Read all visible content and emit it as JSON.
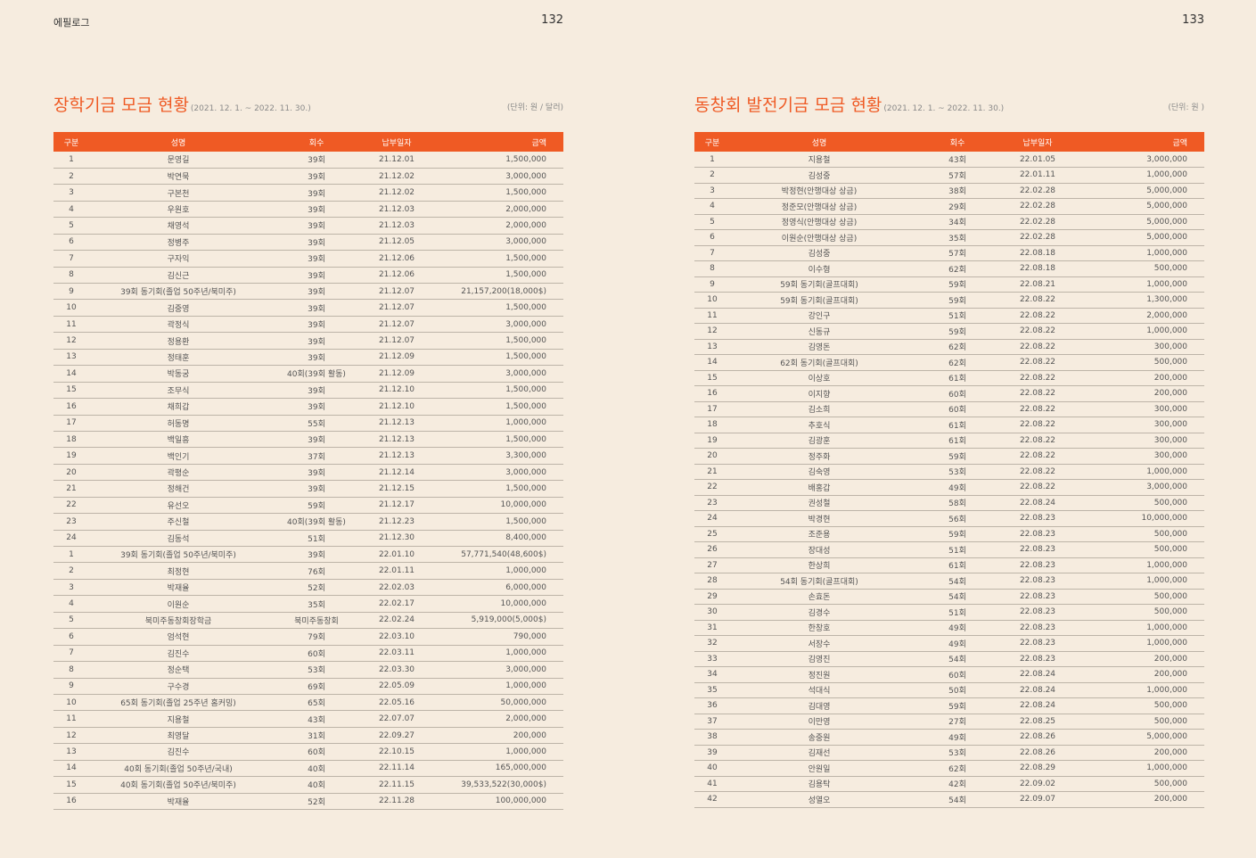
{
  "left": {
    "section_label": "에필로그",
    "page_number": "132",
    "title": "장학기금 모금 현황",
    "period": "(2021. 12. 1. ~ 2022. 11. 30.)",
    "unit": "(단위: 원 / 달러)",
    "headers": [
      "구분",
      "성명",
      "회수",
      "납부일자",
      "금액"
    ],
    "rows": [
      [
        "1",
        "문영길",
        "39회",
        "21.12.01",
        "1,500,000"
      ],
      [
        "2",
        "박연묵",
        "39회",
        "21.12.02",
        "3,000,000"
      ],
      [
        "3",
        "구본천",
        "39회",
        "21.12.02",
        "1,500,000"
      ],
      [
        "4",
        "우원호",
        "39회",
        "21.12.03",
        "2,000,000"
      ],
      [
        "5",
        "채영석",
        "39회",
        "21.12.03",
        "2,000,000"
      ],
      [
        "6",
        "정병주",
        "39회",
        "21.12.05",
        "3,000,000"
      ],
      [
        "7",
        "구자익",
        "39회",
        "21.12.06",
        "1,500,000"
      ],
      [
        "8",
        "김신근",
        "39회",
        "21.12.06",
        "1,500,000"
      ],
      [
        "9",
        "39회 동기회(졸업 50주년/북미주)",
        "39회",
        "21.12.07",
        "21,157,200(18,000$)"
      ],
      [
        "10",
        "김중영",
        "39회",
        "21.12.07",
        "1,500,000"
      ],
      [
        "11",
        "곽정식",
        "39회",
        "21.12.07",
        "3,000,000"
      ],
      [
        "12",
        "정용환",
        "39회",
        "21.12.07",
        "1,500,000"
      ],
      [
        "13",
        "정태훈",
        "39회",
        "21.12.09",
        "1,500,000"
      ],
      [
        "14",
        "박동궁",
        "40회(39회 활동)",
        "21.12.09",
        "3,000,000"
      ],
      [
        "15",
        "조무식",
        "39회",
        "21.12.10",
        "1,500,000"
      ],
      [
        "16",
        "채희갑",
        "39회",
        "21.12.10",
        "1,500,000"
      ],
      [
        "17",
        "허동명",
        "55회",
        "21.12.13",
        "1,000,000"
      ],
      [
        "18",
        "백일흥",
        "39회",
        "21.12.13",
        "1,500,000"
      ],
      [
        "19",
        "백인기",
        "37회",
        "21.12.13",
        "3,300,000"
      ],
      [
        "20",
        "곽평순",
        "39회",
        "21.12.14",
        "3,000,000"
      ],
      [
        "21",
        "정해건",
        "39회",
        "21.12.15",
        "1,500,000"
      ],
      [
        "22",
        "유선오",
        "59회",
        "21.12.17",
        "10,000,000"
      ],
      [
        "23",
        "주신철",
        "40회(39회 활동)",
        "21.12.23",
        "1,500,000"
      ],
      [
        "24",
        "김동석",
        "51회",
        "21.12.30",
        "8,400,000"
      ],
      [
        "1",
        "39회 동기회(졸업 50주년/북미주)",
        "39회",
        "22.01.10",
        "57,771,540(48,600$)"
      ],
      [
        "2",
        "최정현",
        "76회",
        "22.01.11",
        "1,000,000"
      ],
      [
        "3",
        "박재율",
        "52회",
        "22.02.03",
        "6,000,000"
      ],
      [
        "4",
        "이원순",
        "35회",
        "22.02.17",
        "10,000,000"
      ],
      [
        "5",
        "북미주동창회장학금",
        "북미주동창회",
        "22.02.24",
        "5,919,000(5,000$)"
      ],
      [
        "6",
        "엄석현",
        "79회",
        "22.03.10",
        "790,000"
      ],
      [
        "7",
        "김진수",
        "60회",
        "22.03.11",
        "1,000,000"
      ],
      [
        "8",
        "정순택",
        "53회",
        "22.03.30",
        "3,000,000"
      ],
      [
        "9",
        "구수경",
        "69회",
        "22.05.09",
        "1,000,000"
      ],
      [
        "10",
        "65회 동기회(졸업 25주년 홈커밍)",
        "65회",
        "22.05.16",
        "50,000,000"
      ],
      [
        "11",
        "지용철",
        "43회",
        "22.07.07",
        "2,000,000"
      ],
      [
        "12",
        "최영달",
        "31회",
        "22.09.27",
        "200,000"
      ],
      [
        "13",
        "김진수",
        "60회",
        "22.10.15",
        "1,000,000"
      ],
      [
        "14",
        "40회 동기회(졸업 50주년/국내)",
        "40회",
        "22.11.14",
        "165,000,000"
      ],
      [
        "15",
        "40회 동기회(졸업 50주년/북미주)",
        "40회",
        "22.11.15",
        "39,533,522(30,000$)"
      ],
      [
        "16",
        "박재율",
        "52회",
        "22.11.28",
        "100,000,000"
      ]
    ]
  },
  "right": {
    "page_number": "133",
    "title": "동창회 발전기금 모금 현황",
    "period": "(2021. 12. 1. ~ 2022. 11. 30.)",
    "unit": "(단위: 원 )",
    "headers": [
      "구분",
      "성명",
      "회수",
      "납부일자",
      "금액"
    ],
    "rows": [
      [
        "1",
        "지용철",
        "43회",
        "22.01.05",
        "3,000,000"
      ],
      [
        "2",
        "김성중",
        "57회",
        "22.01.11",
        "1,000,000"
      ],
      [
        "3",
        "박정현(안행대상 상금)",
        "38회",
        "22.02.28",
        "5,000,000"
      ],
      [
        "4",
        "정준모(안행대상 상금)",
        "29회",
        "22.02.28",
        "5,000,000"
      ],
      [
        "5",
        "정영식(안행대상 상금)",
        "34회",
        "22.02.28",
        "5,000,000"
      ],
      [
        "6",
        "이원순(안행대상 상금)",
        "35회",
        "22.02.28",
        "5,000,000"
      ],
      [
        "7",
        "김성중",
        "57회",
        "22.08.18",
        "1,000,000"
      ],
      [
        "8",
        "이수형",
        "62회",
        "22.08.18",
        "500,000"
      ],
      [
        "9",
        "59회 동기회(골프대회)",
        "59회",
        "22.08.21",
        "1,000,000"
      ],
      [
        "10",
        "59회 동기회(골프대회)",
        "59회",
        "22.08.22",
        "1,300,000"
      ],
      [
        "11",
        "강인구",
        "51회",
        "22.08.22",
        "2,000,000"
      ],
      [
        "12",
        "신동규",
        "59회",
        "22.08.22",
        "1,000,000"
      ],
      [
        "13",
        "김영돈",
        "62회",
        "22.08.22",
        "300,000"
      ],
      [
        "14",
        "62회 동기회(골프대회)",
        "62회",
        "22.08.22",
        "500,000"
      ],
      [
        "15",
        "이상호",
        "61회",
        "22.08.22",
        "200,000"
      ],
      [
        "16",
        "이지향",
        "60회",
        "22.08.22",
        "200,000"
      ],
      [
        "17",
        "김소희",
        "60회",
        "22.08.22",
        "300,000"
      ],
      [
        "18",
        "추호식",
        "61회",
        "22.08.22",
        "300,000"
      ],
      [
        "19",
        "김광훈",
        "61회",
        "22.08.22",
        "300,000"
      ],
      [
        "20",
        "정주화",
        "59회",
        "22.08.22",
        "300,000"
      ],
      [
        "21",
        "김숙영",
        "53회",
        "22.08.22",
        "1,000,000"
      ],
      [
        "22",
        "배홍갑",
        "49회",
        "22.08.22",
        "3,000,000"
      ],
      [
        "23",
        "권성철",
        "58회",
        "22.08.24",
        "500,000"
      ],
      [
        "24",
        "박경현",
        "56회",
        "22.08.23",
        "10,000,000"
      ],
      [
        "25",
        "조준용",
        "59회",
        "22.08.23",
        "500,000"
      ],
      [
        "26",
        "장대성",
        "51회",
        "22.08.23",
        "500,000"
      ],
      [
        "27",
        "한상희",
        "61회",
        "22.08.23",
        "1,000,000"
      ],
      [
        "28",
        "54회 동기회(골프대회)",
        "54회",
        "22.08.23",
        "1,000,000"
      ],
      [
        "29",
        "손효돈",
        "54회",
        "22.08.23",
        "500,000"
      ],
      [
        "30",
        "김경수",
        "51회",
        "22.08.23",
        "500,000"
      ],
      [
        "31",
        "한창호",
        "49회",
        "22.08.23",
        "1,000,000"
      ],
      [
        "32",
        "서장수",
        "49회",
        "22.08.23",
        "1,000,000"
      ],
      [
        "33",
        "김영진",
        "54회",
        "22.08.23",
        "200,000"
      ],
      [
        "34",
        "정진원",
        "60회",
        "22.08.24",
        "200,000"
      ],
      [
        "35",
        "석대식",
        "50회",
        "22.08.24",
        "1,000,000"
      ],
      [
        "36",
        "김대영",
        "59회",
        "22.08.24",
        "500,000"
      ],
      [
        "37",
        "이만영",
        "27회",
        "22.08.25",
        "500,000"
      ],
      [
        "38",
        "송중원",
        "49회",
        "22.08.26",
        "5,000,000"
      ],
      [
        "39",
        "김재선",
        "53회",
        "22.08.26",
        "200,000"
      ],
      [
        "40",
        "안원일",
        "62회",
        "22.08.29",
        "1,000,000"
      ],
      [
        "41",
        "김용탁",
        "42회",
        "22.09.02",
        "500,000"
      ],
      [
        "42",
        "성열오",
        "54회",
        "22.09.07",
        "200,000"
      ]
    ]
  }
}
